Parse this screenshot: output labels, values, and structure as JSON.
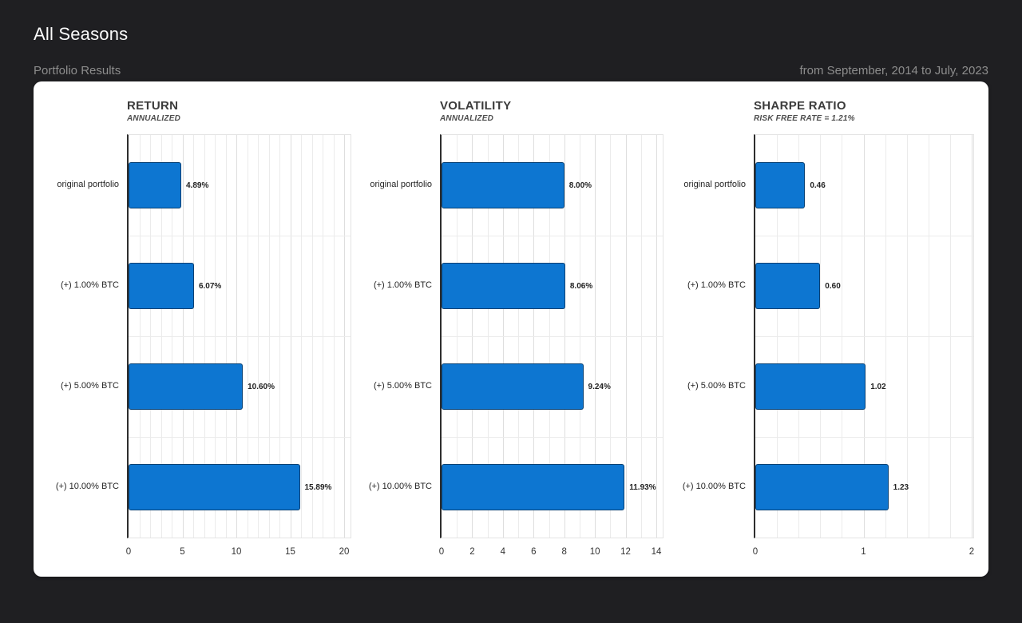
{
  "page": {
    "title": "All Seasons",
    "results_label": "Portfolio Results",
    "date_range": "from September, 2014 to July, 2023"
  },
  "colors": {
    "background": "#1f1f22",
    "card": "#ffffff",
    "bar": "#0d76d1",
    "muted_text": "#8d8d8d"
  },
  "chart_data": [
    {
      "type": "bar",
      "orientation": "horizontal",
      "title": "RETURN",
      "subtitle": "ANNUALIZED",
      "categories": [
        "original portfolio",
        "(+) 1.00% BTC",
        "(+) 5.00% BTC",
        "(+) 10.00% BTC"
      ],
      "values": [
        4.89,
        6.07,
        10.6,
        15.89
      ],
      "labels": [
        "4.89%",
        "6.07%",
        "10.60%",
        "15.89%"
      ],
      "xlim": [
        0,
        20
      ],
      "ticks": [
        0,
        5,
        10,
        15,
        20
      ],
      "minor_step": 1,
      "grid": true,
      "legend": "none"
    },
    {
      "type": "bar",
      "orientation": "horizontal",
      "title": "VOLATILITY",
      "subtitle": "ANNUALIZED",
      "categories": [
        "original portfolio",
        "(+) 1.00% BTC",
        "(+) 5.00% BTC",
        "(+) 10.00% BTC"
      ],
      "values": [
        8.0,
        8.06,
        9.24,
        11.93
      ],
      "labels": [
        "8.00%",
        "8.06%",
        "9.24%",
        "11.93%"
      ],
      "xlim": [
        0,
        14
      ],
      "ticks": [
        0,
        2,
        4,
        6,
        8,
        10,
        12,
        14
      ],
      "minor_step": 1,
      "grid": true,
      "legend": "none"
    },
    {
      "type": "bar",
      "orientation": "horizontal",
      "title": "SHARPE RATIO",
      "subtitle": "RISK FREE RATE = 1.21%",
      "categories": [
        "original portfolio",
        "(+) 1.00% BTC",
        "(+) 5.00% BTC",
        "(+) 10.00% BTC"
      ],
      "values": [
        0.46,
        0.6,
        1.02,
        1.23
      ],
      "labels": [
        "0.46",
        "0.60",
        "1.02",
        "1.23"
      ],
      "xlim": [
        0,
        2
      ],
      "ticks": [
        0,
        1,
        2
      ],
      "minor_step": 0.2,
      "grid": true,
      "legend": "none"
    }
  ]
}
